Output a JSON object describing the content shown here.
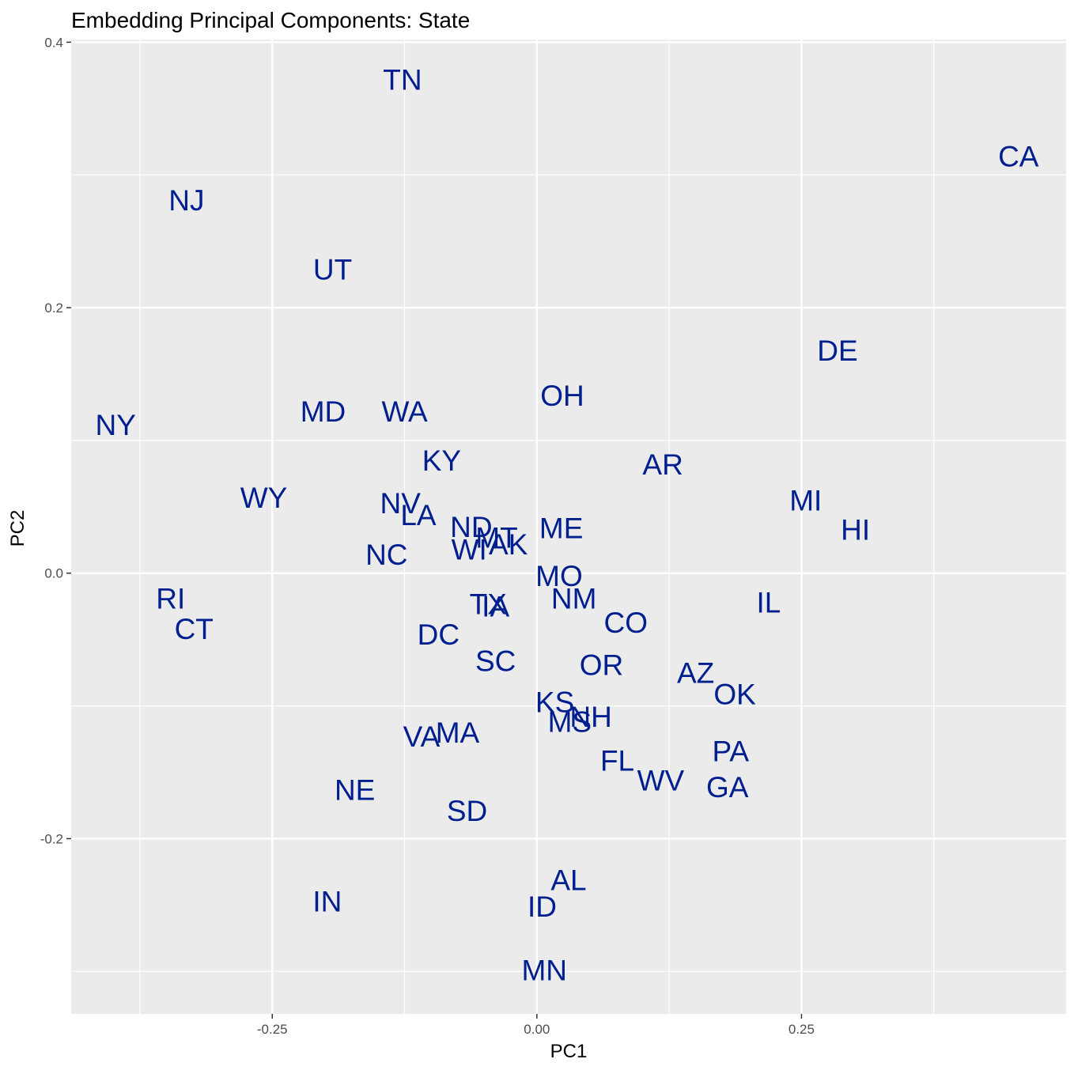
{
  "chart_data": {
    "type": "scatter",
    "title": "Embedding Principal Components: State",
    "xlabel": "PC1",
    "ylabel": "PC2",
    "xlim": [
      -0.44,
      0.5
    ],
    "ylim": [
      -0.332,
      0.402
    ],
    "x_ticks": [
      -0.25,
      0.0,
      0.25
    ],
    "x_tick_labels": [
      "-0.25",
      "0.00",
      "0.25"
    ],
    "y_ticks": [
      -0.2,
      0.0,
      0.2,
      0.4
    ],
    "y_tick_labels": [
      "-0.2",
      "0.0",
      "0.2",
      "0.4"
    ],
    "grid": true,
    "panel_background": "#ebebeb",
    "grid_color": "#ffffff",
    "label_color": "#001f8f",
    "points": [
      {
        "label": "CA",
        "x": 0.455,
        "y": 0.314
      },
      {
        "label": "TN",
        "x": -0.127,
        "y": 0.372
      },
      {
        "label": "NJ",
        "x": -0.331,
        "y": 0.281
      },
      {
        "label": "UT",
        "x": -0.193,
        "y": 0.229
      },
      {
        "label": "DE",
        "x": 0.284,
        "y": 0.168
      },
      {
        "label": "OH",
        "x": 0.024,
        "y": 0.134
      },
      {
        "label": "MD",
        "x": -0.202,
        "y": 0.122
      },
      {
        "label": "WA",
        "x": -0.125,
        "y": 0.122
      },
      {
        "label": "NY",
        "x": -0.398,
        "y": 0.112
      },
      {
        "label": "KY",
        "x": -0.09,
        "y": 0.085
      },
      {
        "label": "AR",
        "x": 0.119,
        "y": 0.082
      },
      {
        "label": "WY",
        "x": -0.258,
        "y": 0.057
      },
      {
        "label": "MI",
        "x": 0.254,
        "y": 0.055
      },
      {
        "label": "NV",
        "x": -0.129,
        "y": 0.053
      },
      {
        "label": "LA",
        "x": -0.112,
        "y": 0.044
      },
      {
        "label": "ND",
        "x": -0.062,
        "y": 0.035
      },
      {
        "label": "ME",
        "x": 0.023,
        "y": 0.034
      },
      {
        "label": "HI",
        "x": 0.301,
        "y": 0.033
      },
      {
        "label": "MT",
        "x": -0.038,
        "y": 0.027
      },
      {
        "label": "AK",
        "x": -0.027,
        "y": 0.022
      },
      {
        "label": "WI",
        "x": -0.064,
        "y": 0.018
      },
      {
        "label": "NC",
        "x": -0.142,
        "y": 0.014
      },
      {
        "label": "MO",
        "x": 0.021,
        "y": -0.002
      },
      {
        "label": "RI",
        "x": -0.346,
        "y": -0.019
      },
      {
        "label": "NM",
        "x": 0.035,
        "y": -0.019
      },
      {
        "label": "IL",
        "x": 0.219,
        "y": -0.022
      },
      {
        "label": "TX",
        "x": -0.046,
        "y": -0.023
      },
      {
        "label": "IA",
        "x": -0.039,
        "y": -0.025
      },
      {
        "label": "CO",
        "x": 0.084,
        "y": -0.037
      },
      {
        "label": "CT",
        "x": -0.324,
        "y": -0.042
      },
      {
        "label": "DC",
        "x": -0.093,
        "y": -0.046
      },
      {
        "label": "SC",
        "x": -0.039,
        "y": -0.066
      },
      {
        "label": "OR",
        "x": 0.061,
        "y": -0.069
      },
      {
        "label": "AZ",
        "x": 0.15,
        "y": -0.075
      },
      {
        "label": "OK",
        "x": 0.187,
        "y": -0.091
      },
      {
        "label": "KS",
        "x": 0.017,
        "y": -0.097
      },
      {
        "label": "NH",
        "x": 0.051,
        "y": -0.108
      },
      {
        "label": "MS",
        "x": 0.031,
        "y": -0.112
      },
      {
        "label": "MA",
        "x": -0.075,
        "y": -0.12
      },
      {
        "label": "VA",
        "x": -0.109,
        "y": -0.123
      },
      {
        "label": "PA",
        "x": 0.183,
        "y": -0.134
      },
      {
        "label": "FL",
        "x": 0.076,
        "y": -0.141
      },
      {
        "label": "WV",
        "x": 0.117,
        "y": -0.156
      },
      {
        "label": "GA",
        "x": 0.18,
        "y": -0.161
      },
      {
        "label": "NE",
        "x": -0.172,
        "y": -0.163
      },
      {
        "label": "SD",
        "x": -0.066,
        "y": -0.179
      },
      {
        "label": "AL",
        "x": 0.03,
        "y": -0.231
      },
      {
        "label": "IN",
        "x": -0.198,
        "y": -0.247
      },
      {
        "label": "ID",
        "x": 0.005,
        "y": -0.251
      },
      {
        "label": "MN",
        "x": 0.007,
        "y": -0.299
      }
    ]
  }
}
